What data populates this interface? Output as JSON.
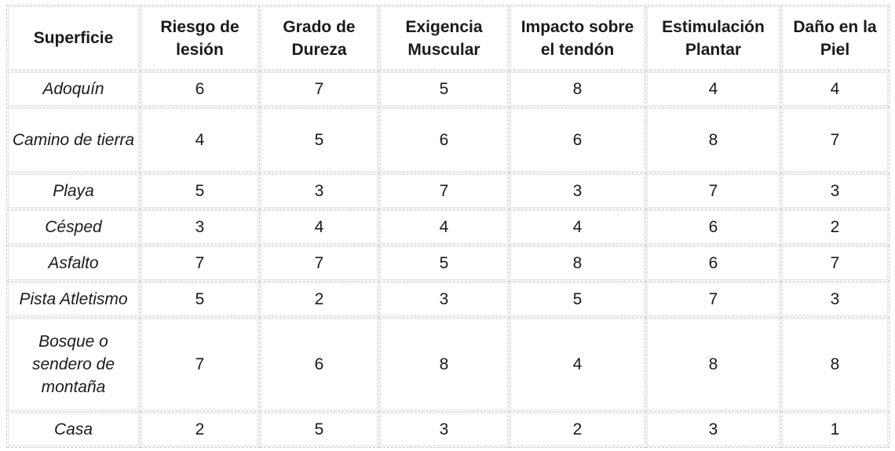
{
  "table": {
    "headers": [
      "Superficie",
      "Riesgo de lesión",
      "Grado de Dureza",
      "Exigencia Muscular",
      "Impacto sobre el tendón",
      "Estimulación Plantar",
      "Daño en la Piel"
    ],
    "rows": [
      {
        "surface": "Adoquín",
        "values": [
          "6",
          "7",
          "5",
          "8",
          "4",
          "4"
        ]
      },
      {
        "surface": "Camino de tierra",
        "values": [
          "4",
          "5",
          "6",
          "6",
          "8",
          "7"
        ]
      },
      {
        "surface": "Playa",
        "values": [
          "5",
          "3",
          "7",
          "3",
          "7",
          "3"
        ]
      },
      {
        "surface": "Césped",
        "values": [
          "3",
          "4",
          "4",
          "4",
          "6",
          "2"
        ]
      },
      {
        "surface": "Asfalto",
        "values": [
          "7",
          "7",
          "5",
          "8",
          "6",
          "7"
        ]
      },
      {
        "surface": "Pista Atletismo",
        "values": [
          "5",
          "2",
          "3",
          "5",
          "7",
          "3"
        ]
      },
      {
        "surface": "Bosque o sendero de montaña",
        "values": [
          "7",
          "6",
          "8",
          "4",
          "8",
          "8"
        ]
      },
      {
        "surface": "Casa",
        "values": [
          "2",
          "5",
          "3",
          "2",
          "3",
          "1"
        ]
      }
    ]
  }
}
